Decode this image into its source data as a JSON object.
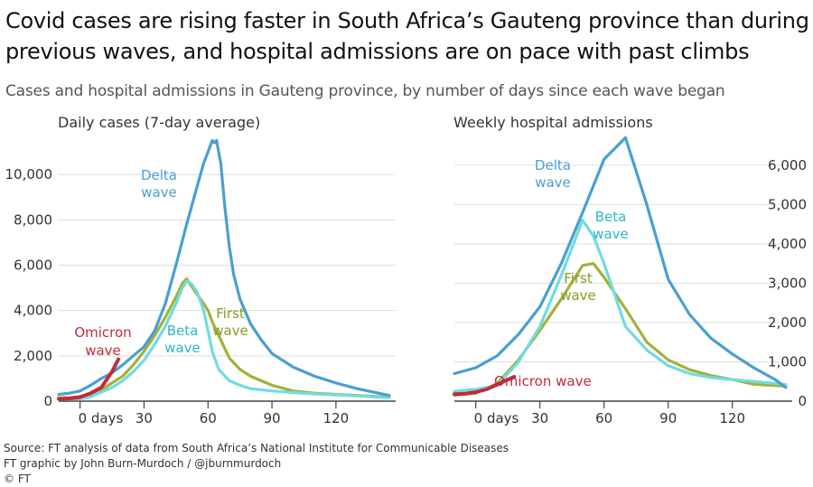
{
  "title": "Covid cases are rising faster in South Africa’s Gauteng province than during previous waves, and hospital admissions are on pace with past climbs",
  "subtitle": "Cases and hospital admissions in Gauteng province, by number of days since each wave began",
  "footer": {
    "source": "Source: FT analysis of data from South Africa’s National Institute for Communicable Diseases",
    "credit": "FT graphic by John Burn-Murdoch / @jburnmurdoch",
    "copyright": "© FT"
  },
  "colors": {
    "delta": "#4a9fd0",
    "beta": "#71dbe1",
    "first": "#a3b13a",
    "omicron": "#c22b3a",
    "grid": "#dddddd",
    "axis": "#444444"
  },
  "chart_data": [
    {
      "type": "line",
      "title": "Daily cases (7-day average)",
      "xlabel": "",
      "ylabel": "",
      "xlim": [
        -10,
        148
      ],
      "ylim": [
        0,
        11800
      ],
      "x_ticks": [
        0,
        30,
        60,
        90,
        120
      ],
      "x_tick_labels": [
        "0 days",
        "30",
        "60",
        "90",
        "120"
      ],
      "y_ticks": [
        0,
        2000,
        4000,
        6000,
        8000,
        10000
      ],
      "y_tick_labels": [
        "0",
        "2,000",
        "4,000",
        "6,000",
        "8,000",
        "10,000"
      ],
      "grid": true,
      "series": [
        {
          "name": "Delta wave",
          "color_key": "delta",
          "label_lines": [
            "Delta",
            "wave"
          ],
          "x": [
            -10,
            -5,
            0,
            5,
            10,
            15,
            20,
            25,
            30,
            35,
            40,
            45,
            50,
            55,
            58,
            60,
            62,
            63,
            64,
            66,
            68,
            70,
            72,
            75,
            80,
            85,
            90,
            95,
            100,
            110,
            120,
            130,
            140,
            145
          ],
          "y": [
            300,
            350,
            450,
            700,
            1000,
            1250,
            1600,
            2000,
            2400,
            3100,
            4300,
            6000,
            7800,
            9500,
            10500,
            11000,
            11500,
            11400,
            11500,
            10500,
            8500,
            6800,
            5600,
            4500,
            3400,
            2700,
            2100,
            1800,
            1500,
            1100,
            800,
            550,
            350,
            250
          ]
        },
        {
          "name": "First wave",
          "color_key": "first",
          "label_lines": [
            "First",
            "wave"
          ],
          "x": [
            -10,
            -5,
            0,
            5,
            10,
            15,
            20,
            25,
            30,
            35,
            40,
            45,
            48,
            50,
            52,
            55,
            58,
            60,
            62,
            65,
            68,
            70,
            75,
            80,
            85,
            90,
            100,
            110,
            120,
            130,
            140,
            145
          ],
          "y": [
            150,
            150,
            200,
            300,
            500,
            800,
            1100,
            1600,
            2200,
            2900,
            3700,
            4600,
            5200,
            5400,
            5100,
            4700,
            4300,
            4000,
            3500,
            2900,
            2300,
            1900,
            1400,
            1100,
            900,
            700,
            450,
            350,
            300,
            250,
            200,
            180
          ]
        },
        {
          "name": "Beta wave",
          "color_key": "beta",
          "label_lines": [
            "Beta",
            "wave"
          ],
          "x": [
            -10,
            -5,
            0,
            5,
            10,
            15,
            20,
            25,
            30,
            35,
            40,
            45,
            48,
            50,
            52,
            55,
            58,
            60,
            62,
            65,
            70,
            75,
            80,
            90,
            100,
            110,
            120,
            130,
            140,
            145
          ],
          "y": [
            80,
            90,
            100,
            200,
            400,
            600,
            900,
            1300,
            1800,
            2500,
            3300,
            4300,
            5000,
            5300,
            5200,
            4800,
            4000,
            3100,
            2200,
            1400,
            900,
            700,
            550,
            450,
            380,
            320,
            280,
            230,
            180,
            150
          ]
        },
        {
          "name": "Omicron wave",
          "color_key": "omicron",
          "label_lines": [
            "Omicron",
            "wave"
          ],
          "x": [
            -10,
            -5,
            0,
            5,
            10,
            15,
            18
          ],
          "y": [
            100,
            120,
            180,
            350,
            600,
            1300,
            1850
          ]
        }
      ]
    },
    {
      "type": "line",
      "title": "Weekly hospital admissions",
      "xlabel": "",
      "ylabel": "",
      "xlim": [
        -10,
        148
      ],
      "ylim": [
        0,
        6800
      ],
      "x_ticks": [
        0,
        30,
        60,
        90,
        120
      ],
      "x_tick_labels": [
        "0 days",
        "30",
        "60",
        "90",
        "120"
      ],
      "y_ticks": [
        0,
        1000,
        2000,
        3000,
        4000,
        5000,
        6000
      ],
      "y_tick_labels": [
        "0",
        "1,000",
        "2,000",
        "3,000",
        "4,000",
        "5,000",
        "6,000"
      ],
      "grid": true,
      "series": [
        {
          "name": "Delta wave",
          "color_key": "delta",
          "label_lines": [
            "Delta",
            "wave"
          ],
          "x": [
            -10,
            0,
            10,
            20,
            30,
            40,
            50,
            60,
            70,
            80,
            90,
            100,
            110,
            120,
            130,
            140,
            145
          ],
          "y": [
            700,
            850,
            1150,
            1700,
            2400,
            3500,
            4800,
            6150,
            6700,
            5000,
            3100,
            2200,
            1600,
            1200,
            850,
            550,
            350
          ]
        },
        {
          "name": "Beta wave",
          "color_key": "beta",
          "label_lines": [
            "Beta",
            "wave"
          ],
          "x": [
            -10,
            0,
            10,
            20,
            30,
            40,
            50,
            55,
            60,
            70,
            80,
            90,
            100,
            110,
            120,
            130,
            140,
            145
          ],
          "y": [
            250,
            300,
            400,
            1000,
            1900,
            3200,
            4600,
            4200,
            3500,
            1900,
            1300,
            900,
            700,
            600,
            550,
            500,
            450,
            420
          ]
        },
        {
          "name": "First wave",
          "color_key": "first",
          "label_lines": [
            "First",
            "wave"
          ],
          "x": [
            -10,
            0,
            10,
            20,
            30,
            40,
            50,
            55,
            60,
            70,
            80,
            90,
            100,
            110,
            120,
            130,
            140,
            145
          ],
          "y": [
            150,
            200,
            450,
            1050,
            1800,
            2600,
            3450,
            3500,
            3150,
            2350,
            1500,
            1050,
            800,
            650,
            550,
            430,
            400,
            380
          ]
        },
        {
          "name": "Omicron wave",
          "color_key": "omicron",
          "label_lines": [
            "Omicron wave"
          ],
          "x": [
            -10,
            -5,
            0,
            5,
            10,
            15,
            18
          ],
          "y": [
            180,
            190,
            230,
            300,
            420,
            550,
            620
          ]
        }
      ]
    }
  ]
}
